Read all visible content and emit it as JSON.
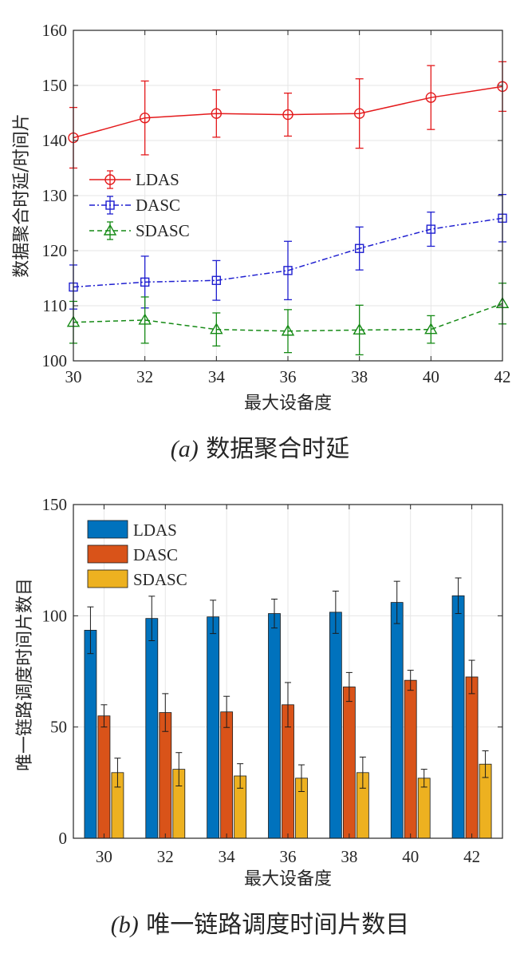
{
  "chart_data": [
    {
      "type": "line",
      "caption_prefix": "(a)",
      "caption_text": " 数据聚合时延",
      "xlabel": "最大设备度",
      "ylabel": "数据聚合时延/时间片",
      "x": [
        30,
        32,
        34,
        36,
        38,
        40,
        42
      ],
      "xlim": [
        30,
        42
      ],
      "ylim": [
        100,
        160
      ],
      "yticks": [
        100,
        110,
        120,
        130,
        140,
        150,
        160
      ],
      "grid": true,
      "legend_position": "middle-left",
      "series": [
        {
          "name": "LDAS",
          "color": "#e41a1c",
          "marker": "circle",
          "linestyle": "solid",
          "values": [
            140.5,
            144.1,
            144.9,
            144.7,
            144.9,
            147.8,
            149.8
          ],
          "err": [
            5.5,
            6.7,
            4.3,
            3.9,
            6.3,
            5.8,
            4.5
          ]
        },
        {
          "name": "DASC",
          "color": "#1f1fd0",
          "marker": "square",
          "linestyle": "dashdot",
          "values": [
            113.4,
            114.3,
            114.6,
            116.4,
            120.4,
            123.9,
            125.9
          ],
          "err": [
            4.0,
            4.7,
            3.6,
            5.3,
            3.9,
            3.1,
            4.3
          ]
        },
        {
          "name": "SDASC",
          "color": "#158a15",
          "marker": "triangle",
          "linestyle": "dashed",
          "values": [
            107.0,
            107.4,
            105.7,
            105.4,
            105.6,
            105.7,
            110.4
          ],
          "err": [
            3.8,
            4.2,
            3.0,
            3.9,
            4.5,
            2.5,
            3.7
          ]
        }
      ]
    },
    {
      "type": "bar",
      "caption_prefix": "(b)",
      "caption_text": " 唯一链路调度时间片数目",
      "xlabel": "最大设备度",
      "ylabel": "唯一链路调度时间片数目",
      "categories": [
        "30",
        "32",
        "34",
        "36",
        "38",
        "40",
        "42"
      ],
      "ylim": [
        0,
        150
      ],
      "yticks": [
        0,
        50,
        100,
        150
      ],
      "grid": true,
      "legend_position": "top-left",
      "series": [
        {
          "name": "LDAS",
          "color": "#0072bd",
          "values": [
            93.5,
            98.8,
            99.5,
            101.0,
            101.6,
            106.0,
            109.0
          ],
          "err": [
            10.5,
            10.0,
            7.5,
            6.5,
            9.5,
            9.5,
            8.0
          ]
        },
        {
          "name": "DASC",
          "color": "#d95319",
          "values": [
            55.0,
            56.5,
            56.8,
            60.0,
            68.0,
            71.0,
            72.5
          ],
          "err": [
            5.0,
            8.5,
            7.0,
            10.0,
            6.5,
            4.5,
            7.5
          ]
        },
        {
          "name": "SDASC",
          "color": "#edb120",
          "values": [
            29.5,
            31.0,
            28.0,
            27.0,
            29.5,
            27.0,
            33.3
          ],
          "err": [
            6.5,
            7.5,
            5.5,
            6.0,
            7.0,
            4.0,
            6.0
          ]
        }
      ]
    }
  ]
}
